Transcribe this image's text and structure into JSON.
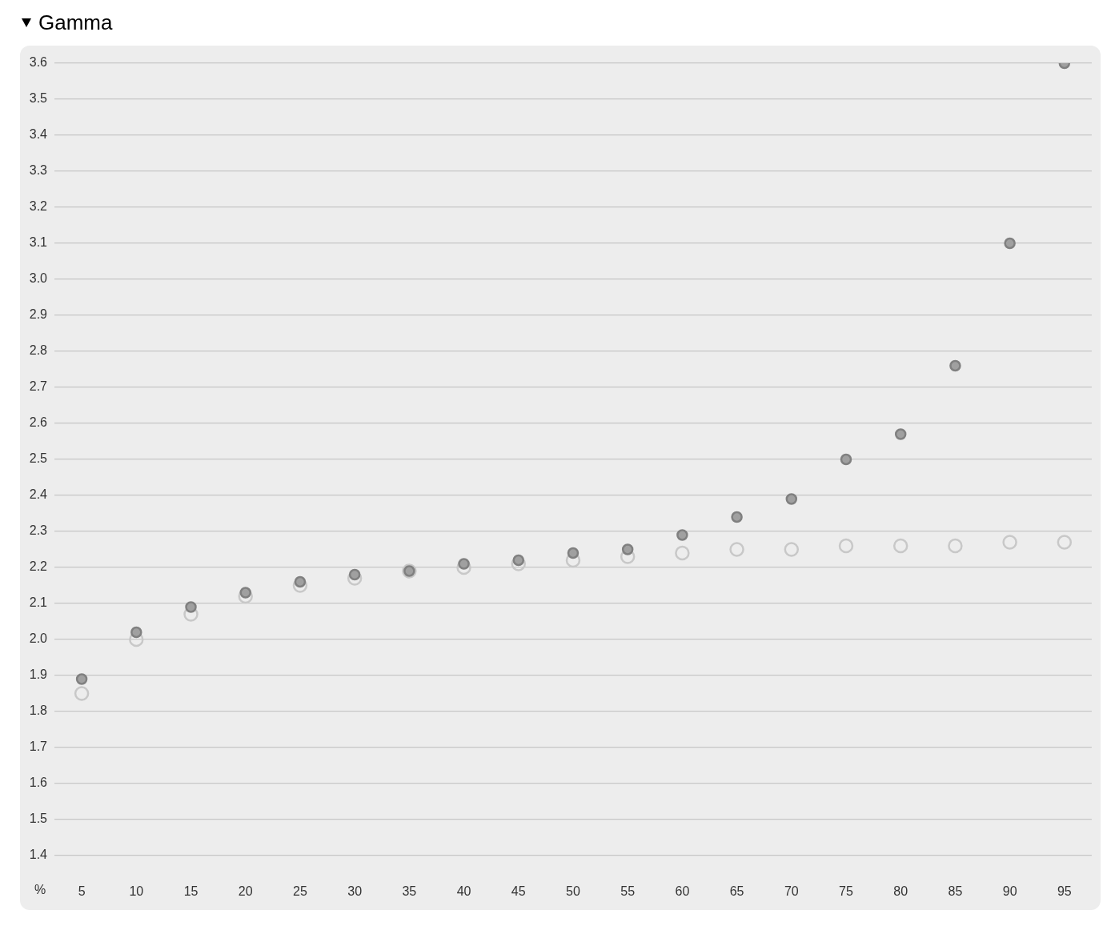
{
  "chart_data": {
    "type": "scatter",
    "title": "Gamma",
    "xlabel": "%",
    "categories": [
      "5",
      "10",
      "15",
      "20",
      "25",
      "30",
      "35",
      "40",
      "45",
      "50",
      "55",
      "60",
      "65",
      "70",
      "75",
      "80",
      "85",
      "90",
      "95"
    ],
    "series": [
      {
        "color": "#a0a0a0",
        "values": [
          1.89,
          2.02,
          2.09,
          2.13,
          2.16,
          2.18,
          2.19,
          2.21,
          2.22,
          2.24,
          2.25,
          2.29,
          2.34,
          2.39,
          2.5,
          2.57,
          2.76,
          3.1,
          3.6
        ]
      },
      {
        "color": "#c8c8c8",
        "values": [
          1.85,
          2.0,
          2.07,
          2.12,
          2.15,
          2.17,
          2.19,
          2.2,
          2.21,
          2.22,
          2.23,
          2.24,
          2.25,
          2.25,
          2.26,
          2.26,
          2.26,
          2.27,
          2.27
        ]
      }
    ],
    "ylim": [
      1.4,
      3.6
    ],
    "yticks": [
      1.4,
      1.5,
      1.6,
      1.7,
      1.8,
      1.9,
      {
        "value": 2,
        "label": "2.0"
      },
      2.1,
      2.2,
      2.3,
      2.4,
      2.5,
      2.6,
      2.7,
      2.8,
      2.9,
      {
        "value": 3,
        "label": "3.0"
      },
      3.1,
      3.2,
      3.3,
      3.4,
      3.5,
      3.6
    ],
    "grid": "y",
    "legend": false,
    "marker": "circle"
  }
}
